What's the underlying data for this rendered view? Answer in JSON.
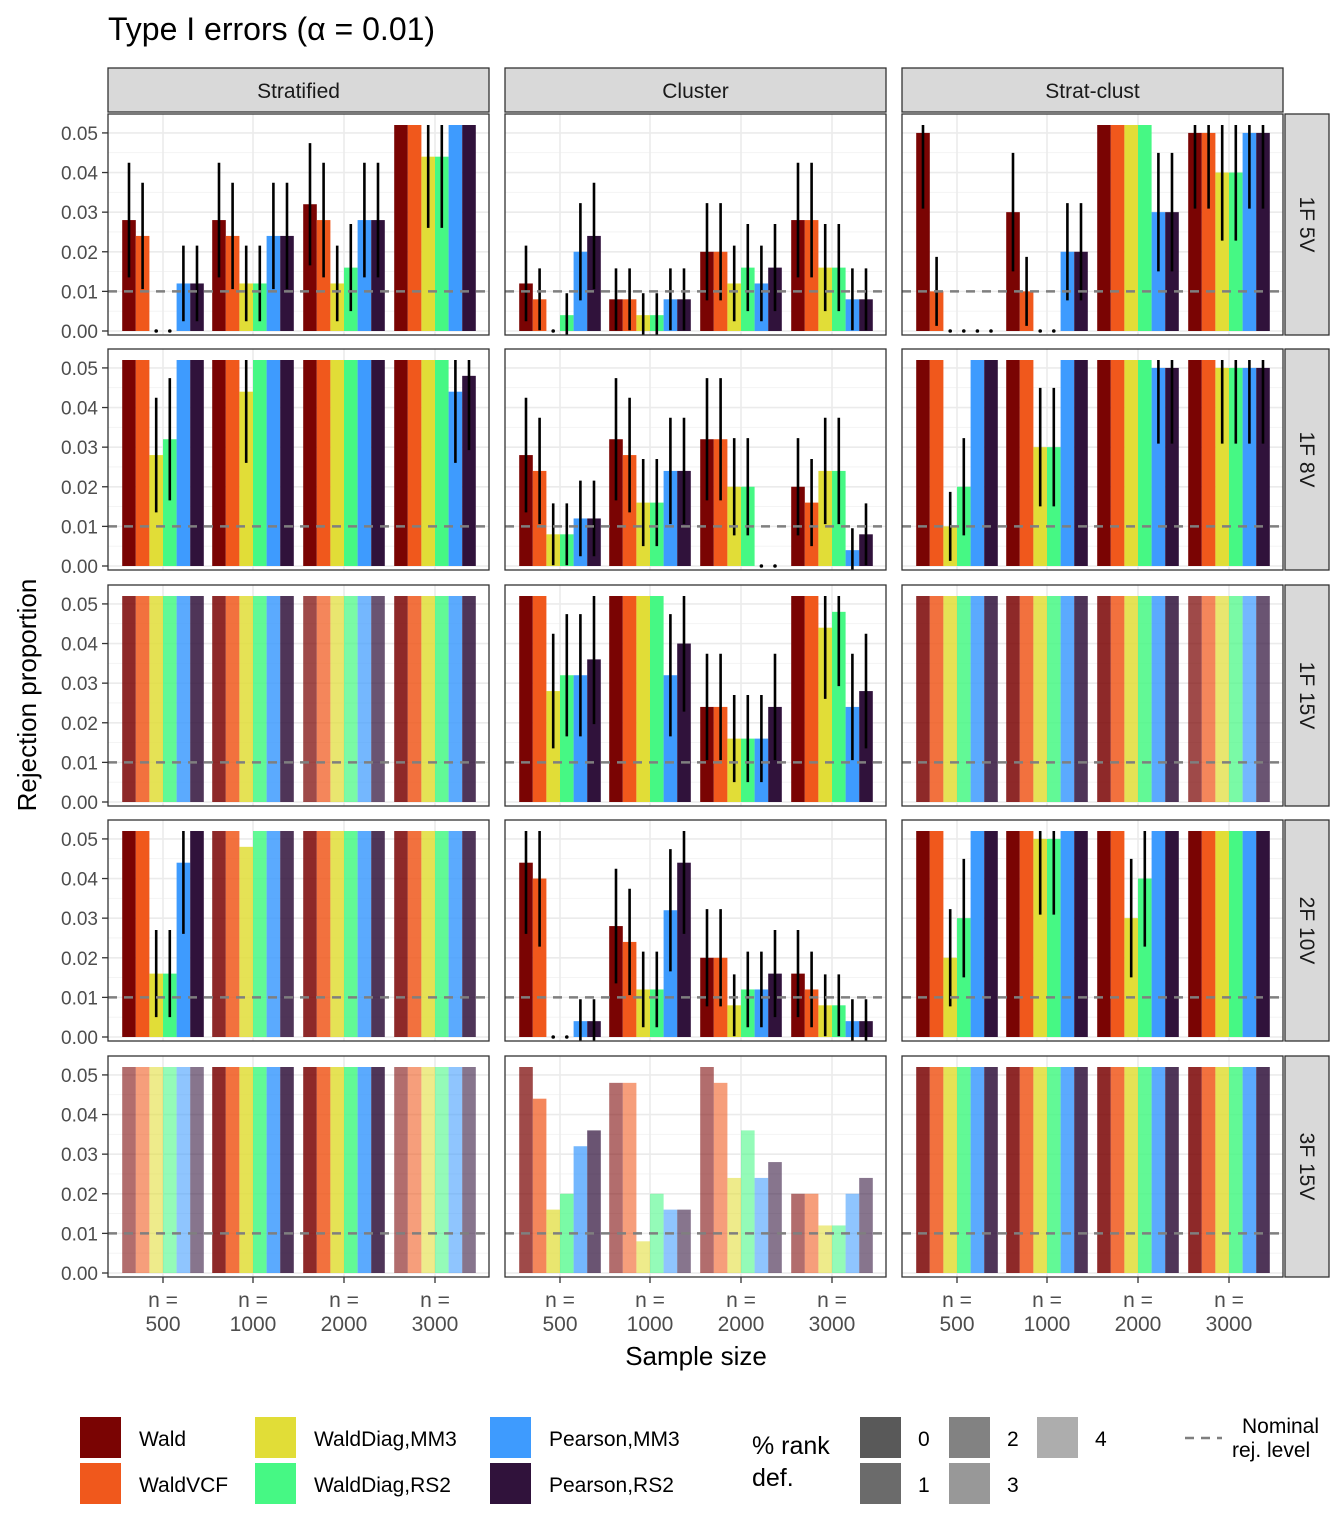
{
  "title": "Type I errors (α = 0.01)",
  "colors": {
    "Wald": "#7A0403",
    "WaldVCF": "#F0581C",
    "WaldDiag,MM3": "#E1DD37",
    "WaldDiag,RS2": "#46F884",
    "Pearson,MM3": "#3E9BFE",
    "Pearson,RS2": "#30123B",
    "strip_bg": "#D9D9D9",
    "nominal_line": "#7F7F7F"
  },
  "legend": {
    "methods": [
      "Wald",
      "WaldVCF",
      "WaldDiag,MM3",
      "WaldDiag,RS2",
      "Pearson,MM3",
      "Pearson,RS2"
    ],
    "rank_title_line1": "% rank",
    "rank_title_line2": "def.",
    "rank_levels": [
      "0",
      "1",
      "2",
      "3",
      "4"
    ],
    "nominal_line1": "Nominal",
    "nominal_line2": "rej. level"
  },
  "chart_data": {
    "type": "bar",
    "xlabel": "Sample size",
    "ylabel": "Rejection proportion",
    "ylim": [
      0,
      0.052
    ],
    "yticks": [
      "0.00",
      "0.01",
      "0.02",
      "0.03",
      "0.04",
      "0.05"
    ],
    "nominal_level": 0.01,
    "grid": true,
    "columns": [
      "Stratified",
      "Cluster",
      "Strat-clust"
    ],
    "rows": [
      "1F 5V",
      "1F 8V",
      "1F 15V",
      "2F 10V",
      "3F 15V"
    ],
    "categories": [
      "n = 500",
      "n = 1000",
      "n = 2000",
      "n = 3000"
    ],
    "category_lines": [
      [
        "n =",
        "500"
      ],
      [
        "n =",
        "1000"
      ],
      [
        "n =",
        "2000"
      ],
      [
        "n =",
        "3000"
      ]
    ],
    "series": [
      "Wald",
      "WaldVCF",
      "WaldDiag,MM3",
      "WaldDiag,RS2",
      "Pearson,MM3",
      "Pearson,RS2"
    ],
    "panels": [
      {
        "row": "1F 5V",
        "col": "Stratified",
        "values": [
          [
            0.028,
            0.024,
            null,
            null,
            0.012,
            0.012
          ],
          [
            0.028,
            0.024,
            0.012,
            0.012,
            0.024,
            0.024
          ],
          [
            0.032,
            0.028,
            0.012,
            0.016,
            0.028,
            0.028
          ],
          [
            0.06,
            0.06,
            0.044,
            0.044,
            0.06,
            0.06
          ]
        ],
        "rank_def": [
          0,
          0,
          0,
          0
        ]
      },
      {
        "row": "1F 5V",
        "col": "Cluster",
        "values": [
          [
            0.012,
            0.008,
            null,
            0.004,
            0.02,
            0.024
          ],
          [
            0.008,
            0.008,
            0.004,
            0.004,
            0.008,
            0.008
          ],
          [
            0.02,
            0.02,
            0.012,
            0.016,
            0.012,
            0.016
          ],
          [
            0.028,
            0.028,
            0.016,
            0.016,
            0.008,
            0.008
          ]
        ],
        "rank_def": [
          0,
          0,
          0,
          0
        ]
      },
      {
        "row": "1F 5V",
        "col": "Strat-clust",
        "values": [
          [
            0.05,
            0.01,
            null,
            null,
            null,
            null
          ],
          [
            0.03,
            0.01,
            null,
            null,
            0.02,
            0.02
          ],
          [
            0.06,
            0.06,
            0.06,
            0.06,
            0.03,
            0.03
          ],
          [
            0.05,
            0.05,
            0.04,
            0.04,
            0.05,
            0.05
          ]
        ],
        "rank_def": [
          0,
          0,
          0,
          0
        ]
      },
      {
        "row": "1F 8V",
        "col": "Stratified",
        "values": [
          [
            0.06,
            0.06,
            0.028,
            0.032,
            0.06,
            0.06
          ],
          [
            0.06,
            0.06,
            0.044,
            0.06,
            0.06,
            0.06
          ],
          [
            0.06,
            0.06,
            0.06,
            0.06,
            0.06,
            0.06
          ],
          [
            0.06,
            0.06,
            0.06,
            0.06,
            0.044,
            0.048
          ]
        ],
        "rank_def": [
          0,
          0,
          0,
          0
        ]
      },
      {
        "row": "1F 8V",
        "col": "Cluster",
        "values": [
          [
            0.028,
            0.024,
            0.008,
            0.008,
            0.012,
            0.012
          ],
          [
            0.032,
            0.028,
            0.016,
            0.016,
            0.024,
            0.024
          ],
          [
            0.032,
            0.032,
            0.02,
            0.02,
            null,
            null
          ],
          [
            0.02,
            0.016,
            0.024,
            0.024,
            0.004,
            0.008
          ]
        ],
        "rank_def": [
          0,
          0,
          0,
          0
        ]
      },
      {
        "row": "1F 8V",
        "col": "Strat-clust",
        "values": [
          [
            0.06,
            0.06,
            0.01,
            0.02,
            0.06,
            0.06
          ],
          [
            0.06,
            0.06,
            0.03,
            0.03,
            0.06,
            0.06
          ],
          [
            0.06,
            0.06,
            0.06,
            0.06,
            0.05,
            0.05
          ],
          [
            0.06,
            0.06,
            0.05,
            0.05,
            0.05,
            0.05
          ]
        ],
        "rank_def": [
          0,
          0,
          0,
          0
        ]
      },
      {
        "row": "1F 15V",
        "col": "Stratified",
        "values": [
          [
            0.06,
            0.06,
            0.06,
            0.06,
            0.06,
            0.06
          ],
          [
            0.06,
            0.06,
            0.06,
            0.06,
            0.06,
            0.06
          ],
          [
            0.06,
            0.06,
            0.06,
            0.06,
            0.06,
            0.06
          ],
          [
            0.06,
            0.06,
            0.06,
            0.06,
            0.06,
            0.06
          ]
        ],
        "rank_def": [
          1,
          1,
          2,
          1
        ]
      },
      {
        "row": "1F 15V",
        "col": "Cluster",
        "values": [
          [
            0.06,
            0.06,
            0.028,
            0.032,
            0.032,
            0.036
          ],
          [
            0.06,
            0.06,
            0.06,
            0.06,
            0.032,
            0.04
          ],
          [
            0.024,
            0.024,
            0.016,
            0.016,
            0.016,
            0.024
          ],
          [
            0.06,
            0.06,
            0.044,
            0.048,
            0.024,
            0.028
          ]
        ],
        "rank_def": [
          0,
          0,
          0,
          0
        ]
      },
      {
        "row": "1F 15V",
        "col": "Strat-clust",
        "values": [
          [
            0.06,
            0.06,
            0.06,
            0.06,
            0.06,
            0.06
          ],
          [
            0.06,
            0.06,
            0.06,
            0.06,
            0.06,
            0.06
          ],
          [
            0.06,
            0.06,
            0.06,
            0.06,
            0.06,
            0.06
          ],
          [
            0.06,
            0.06,
            0.06,
            0.06,
            0.06,
            0.06
          ]
        ],
        "rank_def": [
          1,
          1,
          1,
          2
        ]
      },
      {
        "row": "2F 10V",
        "col": "Stratified",
        "values": [
          [
            0.06,
            0.06,
            0.016,
            0.016,
            0.044,
            0.06
          ],
          [
            0.06,
            0.06,
            0.048,
            0.06,
            0.06,
            0.06
          ],
          [
            0.06,
            0.06,
            0.06,
            0.06,
            0.06,
            0.06
          ],
          [
            0.06,
            0.06,
            0.06,
            0.06,
            0.06,
            0.06
          ]
        ],
        "rank_def": [
          0,
          1,
          1,
          1
        ]
      },
      {
        "row": "2F 10V",
        "col": "Cluster",
        "values": [
          [
            0.044,
            0.04,
            null,
            null,
            0.004,
            0.004
          ],
          [
            0.028,
            0.024,
            0.012,
            0.012,
            0.032,
            0.044
          ],
          [
            0.02,
            0.02,
            0.008,
            0.012,
            0.012,
            0.016
          ],
          [
            0.016,
            0.012,
            0.008,
            0.008,
            0.004,
            0.004
          ]
        ],
        "rank_def": [
          0,
          0,
          0,
          0
        ]
      },
      {
        "row": "2F 10V",
        "col": "Strat-clust",
        "values": [
          [
            0.06,
            0.06,
            0.02,
            0.03,
            0.06,
            0.06
          ],
          [
            0.06,
            0.06,
            0.05,
            0.05,
            0.06,
            0.06
          ],
          [
            0.06,
            0.06,
            0.03,
            0.04,
            0.06,
            0.06
          ],
          [
            0.06,
            0.06,
            0.06,
            0.06,
            0.06,
            0.06
          ]
        ],
        "rank_def": [
          0,
          0,
          0,
          0
        ]
      },
      {
        "row": "3F 15V",
        "col": "Stratified",
        "values": [
          [
            0.06,
            0.06,
            0.06,
            0.06,
            0.06,
            0.06
          ],
          [
            0.06,
            0.06,
            0.06,
            0.06,
            0.06,
            0.06
          ],
          [
            0.06,
            0.06,
            0.06,
            0.06,
            0.06,
            0.06
          ],
          [
            0.06,
            0.06,
            0.06,
            0.06,
            0.06,
            0.06
          ]
        ],
        "rank_def": [
          3,
          1,
          1,
          3
        ]
      },
      {
        "row": "3F 15V",
        "col": "Cluster",
        "values": [
          [
            0.06,
            0.044,
            0.016,
            0.02,
            0.032,
            0.036
          ],
          [
            0.048,
            0.048,
            0.008,
            0.02,
            0.016,
            0.016
          ],
          [
            0.06,
            0.048,
            0.024,
            0.036,
            0.024,
            0.028
          ],
          [
            0.02,
            0.02,
            0.012,
            0.012,
            0.02,
            0.024
          ]
        ],
        "rank_def": [
          2,
          3,
          3,
          3
        ]
      },
      {
        "row": "3F 15V",
        "col": "Strat-clust",
        "values": [
          [
            0.06,
            0.06,
            0.06,
            0.06,
            0.06,
            0.06
          ],
          [
            0.06,
            0.06,
            0.06,
            0.06,
            0.06,
            0.06
          ],
          [
            0.06,
            0.06,
            0.06,
            0.06,
            0.06,
            0.06
          ],
          [
            0.06,
            0.06,
            0.06,
            0.06,
            0.06,
            0.06
          ]
        ],
        "rank_def": [
          1,
          1,
          1,
          1
        ]
      }
    ]
  }
}
